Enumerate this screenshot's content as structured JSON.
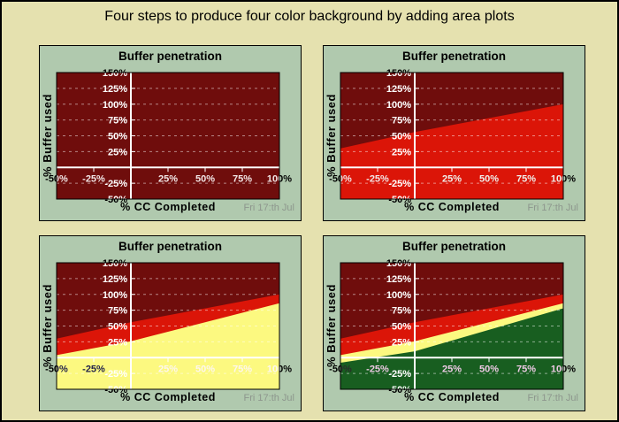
{
  "page": {
    "title": "Four steps to produce four color background by adding area plots",
    "background": "#E5E1AF",
    "border_color": "#000000"
  },
  "palette": {
    "panel_bg": "#B0C9AE",
    "dark_red": "#6F0D0C",
    "red": "#DB1508",
    "yellow": "#FCF980",
    "green": "#185E20",
    "grid": "rgba(255,255,255,0.5)",
    "axis": "#FFFFFF",
    "text": "#000000",
    "date_text": "#8D968D"
  },
  "chart_data": [
    {
      "type": "area",
      "title": "Buffer penetration",
      "ylabel": "% Buffer used",
      "xlabel": "% CC Completed",
      "footer": "Fri 17:th Jul",
      "xlim": [
        -50,
        100
      ],
      "ylim": [
        -50,
        150
      ],
      "background": "dark_red",
      "grid_y": [
        125,
        100,
        75,
        50,
        25,
        -25
      ],
      "y_ticks": [
        {
          "v": 150,
          "label": "150%"
        },
        {
          "v": 125,
          "label": "125%"
        },
        {
          "v": 100,
          "label": "100%"
        },
        {
          "v": 75,
          "label": "75%"
        },
        {
          "v": 50,
          "label": "50%"
        },
        {
          "v": 25,
          "label": "25%"
        },
        {
          "v": -25,
          "label": "-25%"
        },
        {
          "v": -50,
          "label": "-50%"
        }
      ],
      "x_ticks": [
        {
          "v": -50,
          "label": "-50%",
          "color": "#F2E6E6"
        },
        {
          "v": -25,
          "label": "-25%",
          "color": "#F2E6E6"
        },
        {
          "v": 25,
          "label": "25%",
          "color": "#F2E6E6"
        },
        {
          "v": 50,
          "label": "50%",
          "color": "#F2E6E6"
        },
        {
          "v": 75,
          "label": "75%",
          "color": "#F2E6E6"
        },
        {
          "v": 100,
          "label": "100%",
          "color": "#F2E6E6"
        }
      ],
      "areas": []
    },
    {
      "type": "area",
      "title": "Buffer penetration",
      "ylabel": "% Buffer used",
      "xlabel": "% CC Completed",
      "footer": "Fri 17:th Jul",
      "xlim": [
        -50,
        100
      ],
      "ylim": [
        -50,
        150
      ],
      "background": "dark_red",
      "grid_y": [
        125,
        100,
        75,
        50,
        25,
        -25
      ],
      "y_ticks": [
        {
          "v": 150,
          "label": "150%"
        },
        {
          "v": 125,
          "label": "125%"
        },
        {
          "v": 100,
          "label": "100%"
        },
        {
          "v": 75,
          "label": "75%"
        },
        {
          "v": 50,
          "label": "50%"
        },
        {
          "v": 25,
          "label": "25%"
        },
        {
          "v": -25,
          "label": "-25%"
        },
        {
          "v": -50,
          "label": "-50%"
        }
      ],
      "x_ticks": [
        {
          "v": -50,
          "label": "-50%",
          "color": "#F2E6E6"
        },
        {
          "v": -25,
          "label": "-25%",
          "color": "#F2E6E6"
        },
        {
          "v": 25,
          "label": "25%",
          "color": "#EFF0EC"
        },
        {
          "v": 50,
          "label": "50%",
          "color": "#EFF0EC"
        },
        {
          "v": 75,
          "label": "75%",
          "color": "#EFF0EC"
        },
        {
          "v": 100,
          "label": "100%",
          "color": "#EFF0EC"
        }
      ],
      "areas": [
        {
          "name": "red-zone",
          "color": "red",
          "top": [
            [
              -50,
              30
            ],
            [
              0,
              56
            ],
            [
              100,
              100
            ]
          ]
        }
      ]
    },
    {
      "type": "area",
      "title": "Buffer penetration",
      "ylabel": "% Buffer used",
      "xlabel": "% CC Completed",
      "footer": "Fri 17:th Jul",
      "xlim": [
        -50,
        100
      ],
      "ylim": [
        -50,
        150
      ],
      "background": "dark_red",
      "grid_y": [
        125,
        100,
        75,
        50,
        25,
        -25
      ],
      "y_ticks": [
        {
          "v": 150,
          "label": "150%"
        },
        {
          "v": 125,
          "label": "125%"
        },
        {
          "v": 100,
          "label": "100%"
        },
        {
          "v": 75,
          "label": "75%"
        },
        {
          "v": 50,
          "label": "50%"
        },
        {
          "v": 25,
          "label": "25%"
        },
        {
          "v": -25,
          "label": "-25%"
        },
        {
          "v": -50,
          "label": "-50%"
        }
      ],
      "x_ticks": [
        {
          "v": -50,
          "label": "-50%",
          "color": "#26264C"
        },
        {
          "v": -25,
          "label": "-25%",
          "color": "#26264C"
        },
        {
          "v": 25,
          "label": "25%",
          "color": "#FDF6EE"
        },
        {
          "v": 50,
          "label": "50%",
          "color": "#FDF6EE"
        },
        {
          "v": 75,
          "label": "75%",
          "color": "#FDF6EE"
        },
        {
          "v": 100,
          "label": "100%",
          "color": "#FDF6EE"
        }
      ],
      "areas": [
        {
          "name": "red-zone",
          "color": "red",
          "top": [
            [
              -50,
              30
            ],
            [
              0,
              56
            ],
            [
              100,
              100
            ]
          ]
        },
        {
          "name": "yellow-zone",
          "color": "yellow",
          "top": [
            [
              -50,
              4
            ],
            [
              0,
              26
            ],
            [
              100,
              86
            ]
          ]
        }
      ]
    },
    {
      "type": "area",
      "title": "Buffer penetration",
      "ylabel": "% Buffer used",
      "xlabel": "% CC Completed",
      "footer": "Fri 17:th Jul",
      "xlim": [
        -50,
        100
      ],
      "ylim": [
        -50,
        150
      ],
      "background": "dark_red",
      "grid_y": [
        125,
        100,
        75,
        50,
        25,
        -25
      ],
      "y_ticks": [
        {
          "v": 150,
          "label": "150%"
        },
        {
          "v": 125,
          "label": "125%"
        },
        {
          "v": 100,
          "label": "100%"
        },
        {
          "v": 75,
          "label": "75%"
        },
        {
          "v": 50,
          "label": "50%"
        },
        {
          "v": 25,
          "label": "25%"
        },
        {
          "v": -25,
          "label": "-25%"
        },
        {
          "v": -50,
          "label": "-50%"
        }
      ],
      "x_ticks": [
        {
          "v": -50,
          "label": "-50%",
          "color": "#2B2B2B"
        },
        {
          "v": -25,
          "label": "-25%",
          "color": "#EDC9E4"
        },
        {
          "v": 25,
          "label": "25%",
          "color": "#EDC9E4"
        },
        {
          "v": 50,
          "label": "50%",
          "color": "#EDC9E4"
        },
        {
          "v": 75,
          "label": "75%",
          "color": "#EDC9E4"
        },
        {
          "v": 100,
          "label": "100%",
          "color": "#EDC9E4"
        }
      ],
      "areas": [
        {
          "name": "red-zone",
          "color": "red",
          "top": [
            [
              -50,
              30
            ],
            [
              0,
              56
            ],
            [
              100,
              100
            ]
          ]
        },
        {
          "name": "yellow-zone",
          "color": "yellow",
          "top": [
            [
              -50,
              4
            ],
            [
              0,
              26
            ],
            [
              100,
              86
            ]
          ]
        },
        {
          "name": "green-zone",
          "color": "green",
          "top": [
            [
              -50,
              -8
            ],
            [
              0,
              10
            ],
            [
              100,
              78
            ]
          ]
        }
      ]
    }
  ]
}
